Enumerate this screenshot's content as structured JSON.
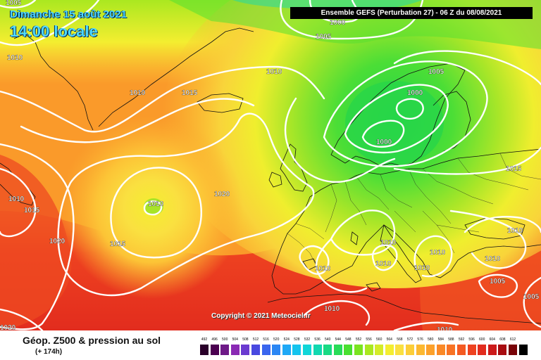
{
  "header": {
    "date": "Dimanche 15 août 2021",
    "time": "14:00 locale",
    "run": "Ensemble GEFS (Perturbation 27) - 06 Z du 08/08/2021"
  },
  "copyright": "Copyright © 2021 Meteociel.fr",
  "product": {
    "title": "Géop. Z500 & pression au sol",
    "lead": "(+ 174h)"
  },
  "isobars": [
    {
      "value": "1005",
      "role": "top-left"
    },
    {
      "value": "1000",
      "role": "top-center"
    },
    {
      "value": "1005",
      "role": "north-atlantic"
    },
    {
      "value": "1010",
      "role": "greenland-west"
    },
    {
      "value": "1010",
      "role": "greenland-south"
    },
    {
      "value": "1015",
      "role": "iceland"
    },
    {
      "value": "1010",
      "role": "norwegian-sea"
    },
    {
      "value": "1005",
      "role": "norway"
    },
    {
      "value": "1000",
      "role": "scandinavia"
    },
    {
      "value": "1000",
      "role": "baltic"
    },
    {
      "value": "1015",
      "role": "russia"
    },
    {
      "value": "1010",
      "role": "west-edge"
    },
    {
      "value": "1015",
      "role": "west-atlantic"
    },
    {
      "value": "1020",
      "role": "southwest-atlantic"
    },
    {
      "value": "1010",
      "role": "mid-atlantic-low"
    },
    {
      "value": "1015",
      "role": "mid-atlantic-ring"
    },
    {
      "value": "1020",
      "role": "azores"
    },
    {
      "value": "1010",
      "role": "alps"
    },
    {
      "value": "1010",
      "role": "italy"
    },
    {
      "value": "1010",
      "role": "adriatic"
    },
    {
      "value": "1010",
      "role": "balkans"
    },
    {
      "value": "1010",
      "role": "black-sea"
    },
    {
      "value": "1010",
      "role": "greece"
    },
    {
      "value": "1005",
      "role": "turkey"
    },
    {
      "value": "1005",
      "role": "east-edge"
    },
    {
      "value": "1010",
      "role": "iberia"
    },
    {
      "value": "1010",
      "role": "north-africa"
    },
    {
      "value": "1010",
      "role": "libya"
    },
    {
      "value": "1020",
      "role": "bottom-left"
    }
  ],
  "legend": [
    {
      "label": "492",
      "color": "#2a002a"
    },
    {
      "label": "496",
      "color": "#4b0050"
    },
    {
      "label": "500",
      "color": "#6e1a87"
    },
    {
      "label": "504",
      "color": "#8a2ab4"
    },
    {
      "label": "508",
      "color": "#6a3ad0"
    },
    {
      "label": "512",
      "color": "#4848e0"
    },
    {
      "label": "516",
      "color": "#3a66ee"
    },
    {
      "label": "520",
      "color": "#2a86f4"
    },
    {
      "label": "524",
      "color": "#1ea8f6"
    },
    {
      "label": "528",
      "color": "#14c4ee"
    },
    {
      "label": "532",
      "color": "#10d6d8"
    },
    {
      "label": "536",
      "color": "#10d8b0"
    },
    {
      "label": "540",
      "color": "#18da84"
    },
    {
      "label": "544",
      "color": "#28dc58"
    },
    {
      "label": "548",
      "color": "#48e030"
    },
    {
      "label": "552",
      "color": "#7ae420"
    },
    {
      "label": "556",
      "color": "#aae820"
    },
    {
      "label": "560",
      "color": "#d4ec28"
    },
    {
      "label": "564",
      "color": "#f4ee30"
    },
    {
      "label": "568",
      "color": "#fae040"
    },
    {
      "label": "572",
      "color": "#fcce38"
    },
    {
      "label": "576",
      "color": "#fcb830"
    },
    {
      "label": "580",
      "color": "#fca02a"
    },
    {
      "label": "584",
      "color": "#fa8826"
    },
    {
      "label": "588",
      "color": "#f87224"
    },
    {
      "label": "592",
      "color": "#f45a22"
    },
    {
      "label": "596",
      "color": "#ee4220"
    },
    {
      "label": "600",
      "color": "#e22c1e"
    },
    {
      "label": "604",
      "color": "#cc1a1a"
    },
    {
      "label": "608",
      "color": "#a80c10"
    },
    {
      "label": "612",
      "color": "#780408"
    },
    {
      "label": "",
      "color": "#000000"
    }
  ]
}
